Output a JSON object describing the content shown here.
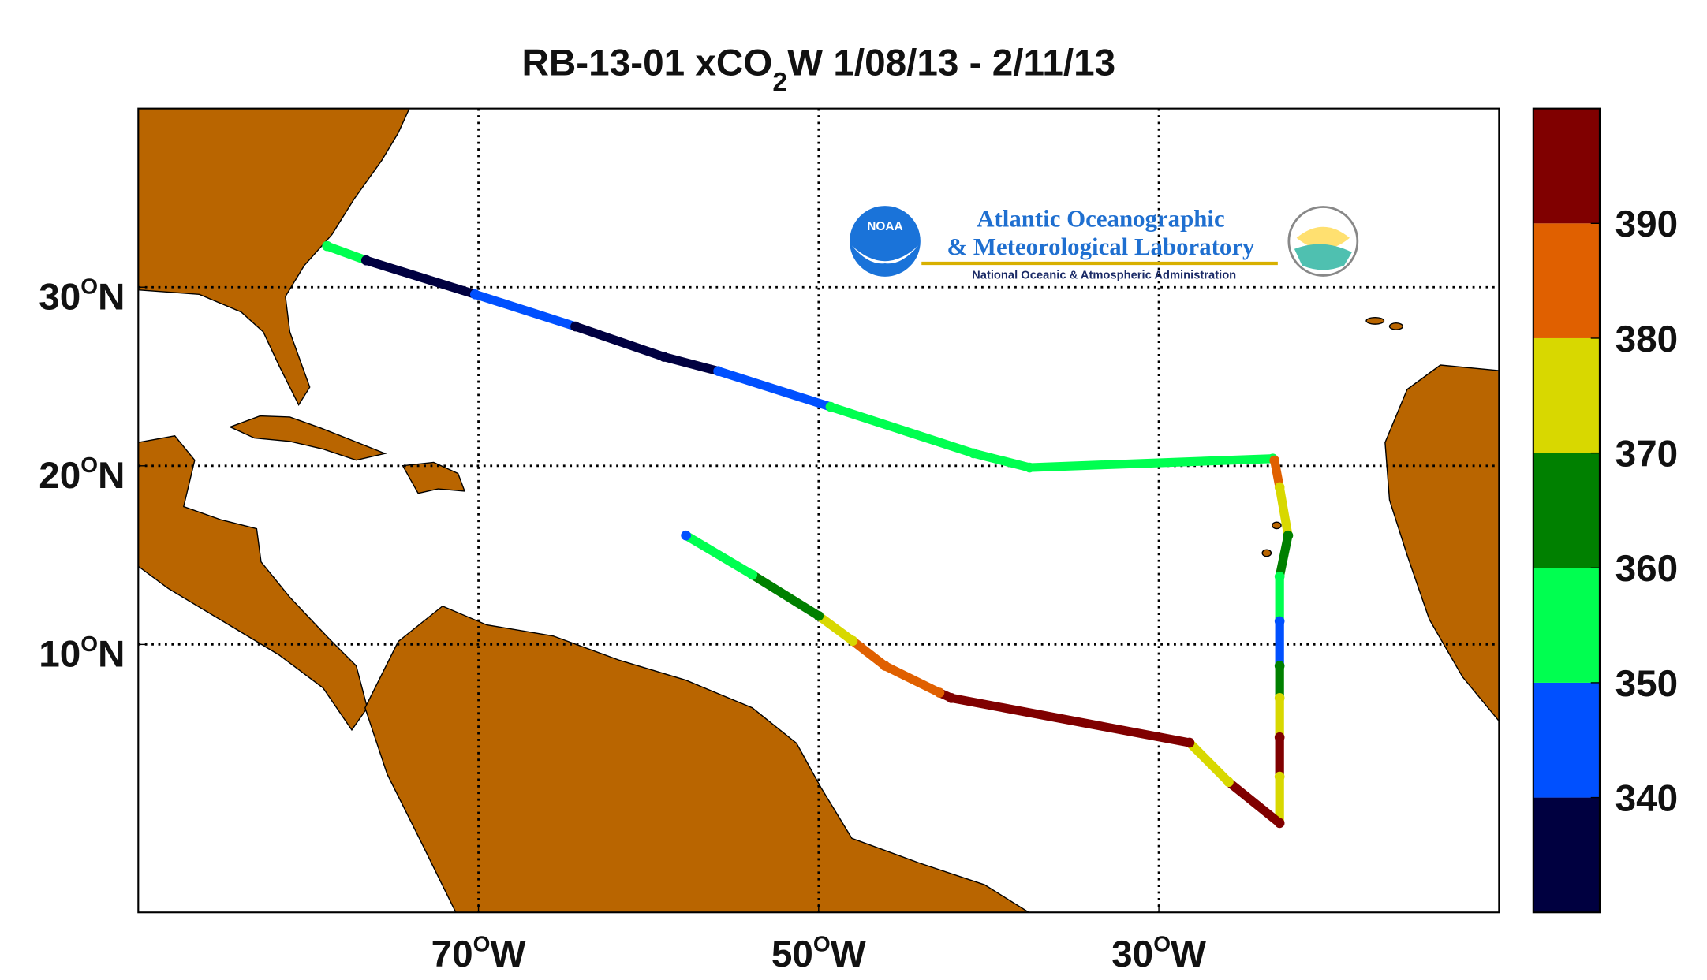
{
  "chart_data": {
    "type": "track-map",
    "title": {
      "main": "RB-13-01 xCO",
      "sub": "2",
      "rest": "W 1/08/13 - 2/11/13"
    },
    "xlim": [
      -90,
      -10
    ],
    "ylim": [
      -5,
      40
    ],
    "xticks": [
      {
        "value": -70,
        "label": "70",
        "unit": "O",
        "hemisphere": "W"
      },
      {
        "value": -50,
        "label": "50",
        "unit": "O",
        "hemisphere": "W"
      },
      {
        "value": -30,
        "label": "30",
        "unit": "O",
        "hemisphere": "W"
      }
    ],
    "yticks": [
      {
        "value": 30,
        "label": "30",
        "unit": "O",
        "hemisphere": "N"
      },
      {
        "value": 20,
        "label": "20",
        "unit": "O",
        "hemisphere": "N"
      },
      {
        "value": 10,
        "label": "10",
        "unit": "O",
        "hemisphere": "N"
      }
    ],
    "grid": true,
    "track": {
      "lon": [
        -78.9,
        -76.6,
        -70.2,
        -64.3,
        -59.1,
        -55.9,
        -49.3,
        -40.9,
        -37.6,
        -23.3,
        -23.2,
        -22.9,
        -22.4,
        -22.9,
        -22.9,
        -22.9,
        -22.9,
        -22.9,
        -22.9,
        -22.9,
        -25.9,
        -28.2,
        -42.2,
        -42.9,
        -46.1,
        -48.0,
        -50.0,
        -53.9,
        -57.8
      ],
      "lat": [
        32.3,
        31.5,
        29.6,
        27.8,
        26.1,
        25.3,
        23.3,
        20.7,
        19.9,
        20.4,
        20.3,
        18.8,
        16.1,
        13.8,
        11.3,
        8.8,
        7.0,
        4.8,
        2.6,
        0.0,
        2.3,
        4.5,
        7.0,
        7.3,
        8.8,
        10.2,
        11.6,
        13.9,
        16.1
      ],
      "values": [
        355,
        335,
        345,
        335,
        335,
        345,
        355,
        358,
        355,
        355,
        385,
        375,
        362,
        355,
        345,
        365,
        375,
        392,
        375,
        395,
        375,
        395,
        395,
        385,
        388,
        375,
        365,
        355,
        345
      ]
    },
    "colorbar": {
      "lim": [
        330,
        400
      ],
      "ticks": [
        340,
        350,
        360,
        370,
        380,
        390
      ],
      "colors": [
        "#000040",
        "#0050ff",
        "#00ff50",
        "#008000",
        "#d8d800",
        "#e06000",
        "#800000"
      ]
    },
    "logo": {
      "badge": "NOAA",
      "line1": "Atlantic Oceanographic",
      "line2": "& Meteorological Laboratory",
      "line3": "National Oceanic & Atmospheric Administration"
    }
  }
}
